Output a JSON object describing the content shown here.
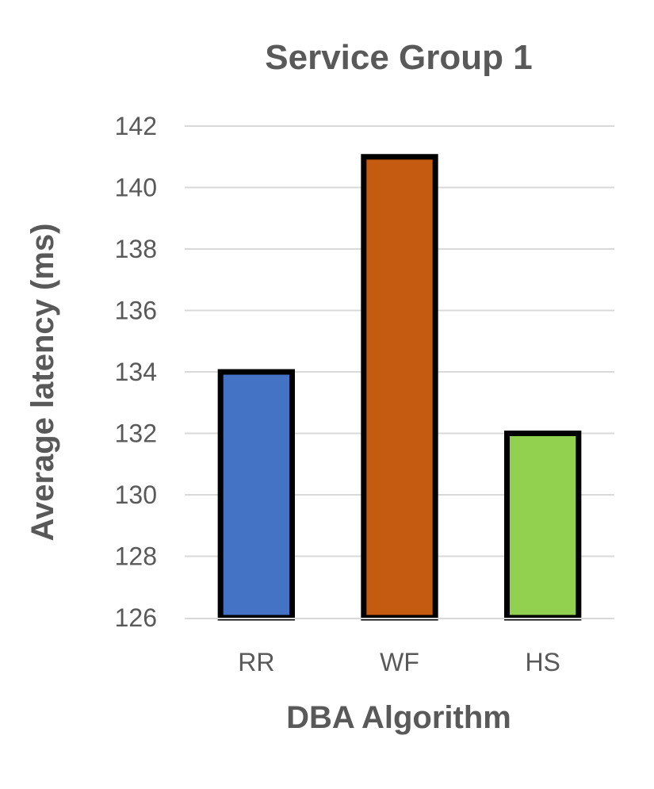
{
  "chart_data": {
    "type": "bar",
    "title": "Service Group 1",
    "xlabel": "DBA Algorithm",
    "ylabel": "Average latency (ms)",
    "categories": [
      "RR",
      "WF",
      "HS"
    ],
    "values": [
      134,
      141,
      132
    ],
    "colors": [
      "#4472c4",
      "#c55a11",
      "#92d050"
    ],
    "ylim": [
      126,
      142
    ],
    "yticks": [
      126,
      128,
      130,
      132,
      134,
      136,
      138,
      140,
      142
    ],
    "ytick_labels": [
      "126",
      "128",
      "130",
      "132",
      "134",
      "136",
      "138",
      "140",
      "142"
    ],
    "grid": true,
    "legend": "none"
  }
}
